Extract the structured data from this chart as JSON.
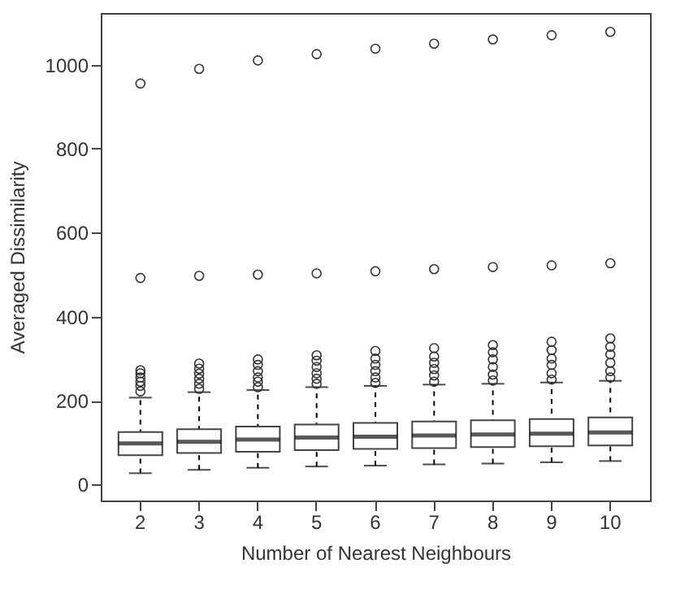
{
  "chart_data": {
    "type": "box",
    "xlabel": "Number of Nearest Neighbours",
    "ylabel": "Averaged Dissimilarity",
    "categories": [
      "2",
      "3",
      "4",
      "5",
      "6",
      "7",
      "8",
      "9",
      "10"
    ],
    "boxes": [
      {
        "low": 27,
        "q1": 70,
        "median": 98,
        "q3": 125,
        "high": 207,
        "outliers": [
          222,
          235,
          245,
          255,
          265,
          272,
          492,
          955
        ]
      },
      {
        "low": 35,
        "q1": 75,
        "median": 102,
        "q3": 132,
        "high": 220,
        "outliers": [
          228,
          240,
          252,
          264,
          276,
          288,
          497,
          990
        ]
      },
      {
        "low": 40,
        "q1": 78,
        "median": 107,
        "q3": 138,
        "high": 225,
        "outliers": [
          232,
          245,
          255,
          270,
          285,
          298,
          500,
          1010
        ]
      },
      {
        "low": 43,
        "q1": 82,
        "median": 112,
        "q3": 143,
        "high": 232,
        "outliers": [
          240,
          252,
          265,
          280,
          295,
          308,
          503,
          1025
        ]
      },
      {
        "low": 45,
        "q1": 85,
        "median": 114,
        "q3": 147,
        "high": 235,
        "outliers": [
          242,
          255,
          270,
          285,
          300,
          318,
          508,
          1038
        ]
      },
      {
        "low": 48,
        "q1": 87,
        "median": 117,
        "q3": 150,
        "high": 238,
        "outliers": [
          245,
          260,
          275,
          290,
          305,
          325,
          513,
          1050
        ]
      },
      {
        "low": 50,
        "q1": 89,
        "median": 119,
        "q3": 153,
        "high": 240,
        "outliers": [
          248,
          262,
          280,
          298,
          315,
          332,
          518,
          1060
        ]
      },
      {
        "low": 53,
        "q1": 91,
        "median": 121,
        "q3": 156,
        "high": 243,
        "outliers": [
          250,
          265,
          285,
          300,
          320,
          340,
          522,
          1070
        ]
      },
      {
        "low": 56,
        "q1": 93,
        "median": 124,
        "q3": 160,
        "high": 247,
        "outliers": [
          255,
          270,
          290,
          310,
          328,
          348,
          527,
          1078
        ]
      }
    ],
    "ylim": [
      -38,
      1123
    ],
    "yticks": [
      0,
      200,
      400,
      600,
      800,
      {
        "value": 1000,
        "label": "1000"
      }
    ],
    "marker": "circle",
    "grid": false
  }
}
